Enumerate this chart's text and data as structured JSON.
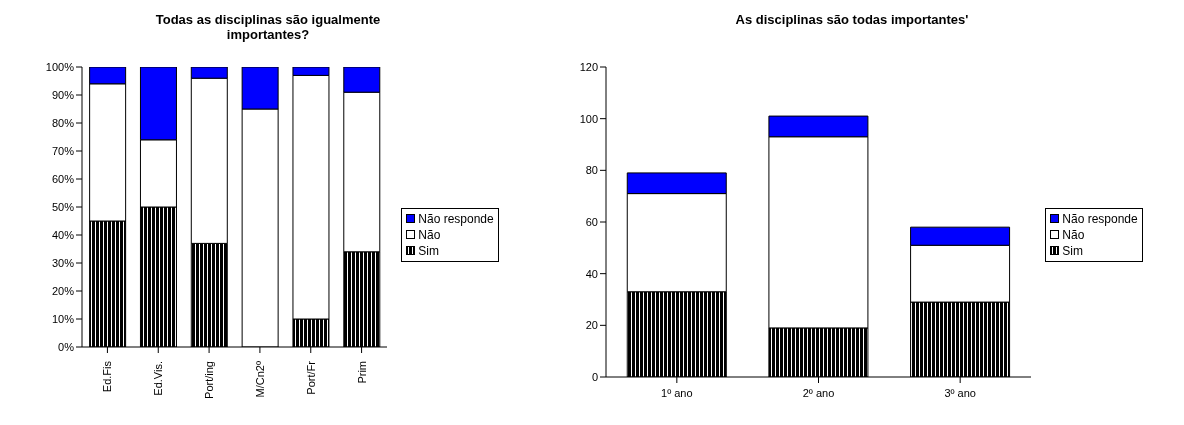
{
  "chart_data": [
    {
      "type": "bar",
      "stacked": true,
      "title": "Todas as disciplinas são igualmente importantes?",
      "categories": [
        "Ed.Fis",
        "Ed.Vis.",
        "Port/ing",
        "M/Cn2º",
        "Port/Fr",
        "Prim"
      ],
      "ylim": [
        0,
        100
      ],
      "yticks": [
        {
          "value": 0,
          "label": "0%"
        },
        {
          "value": 10,
          "label": "10%"
        },
        {
          "value": 20,
          "label": "20%"
        },
        {
          "value": 30,
          "label": "30%"
        },
        {
          "value": 40,
          "label": "40%"
        },
        {
          "value": 50,
          "label": "50%"
        },
        {
          "value": 60,
          "label": "60%"
        },
        {
          "value": 70,
          "label": "70%"
        },
        {
          "value": 80,
          "label": "80%"
        },
        {
          "value": 90,
          "label": "90%"
        },
        {
          "value": 100,
          "label": "100%"
        }
      ],
      "grid": false,
      "legend": "right",
      "series": [
        {
          "name": "Sim",
          "color": "#000000",
          "values": [
            45,
            50,
            37,
            0,
            10,
            34
          ]
        },
        {
          "name": "Não",
          "color": "#ffffff",
          "values": [
            49,
            24,
            59,
            85,
            87,
            57
          ]
        },
        {
          "name": "Não responde",
          "color": "#0000ff",
          "values": [
            6,
            26,
            4,
            15,
            3,
            9
          ]
        }
      ]
    },
    {
      "type": "bar",
      "stacked": true,
      "title": "As disciplinas são todas importantes'",
      "categories": [
        "1º ano",
        "2º ano",
        "3º ano"
      ],
      "ylim": [
        0,
        120
      ],
      "yticks": [
        0,
        20,
        40,
        60,
        80,
        100,
        120
      ],
      "grid": false,
      "legend": "right",
      "series": [
        {
          "name": "Sim",
          "color": "#000000",
          "values": [
            33,
            19,
            29
          ]
        },
        {
          "name": "Não",
          "color": "#ffffff",
          "values": [
            38,
            74,
            22
          ]
        },
        {
          "name": "Não responde",
          "color": "#0000ff",
          "values": [
            8,
            8,
            7
          ]
        }
      ]
    }
  ]
}
